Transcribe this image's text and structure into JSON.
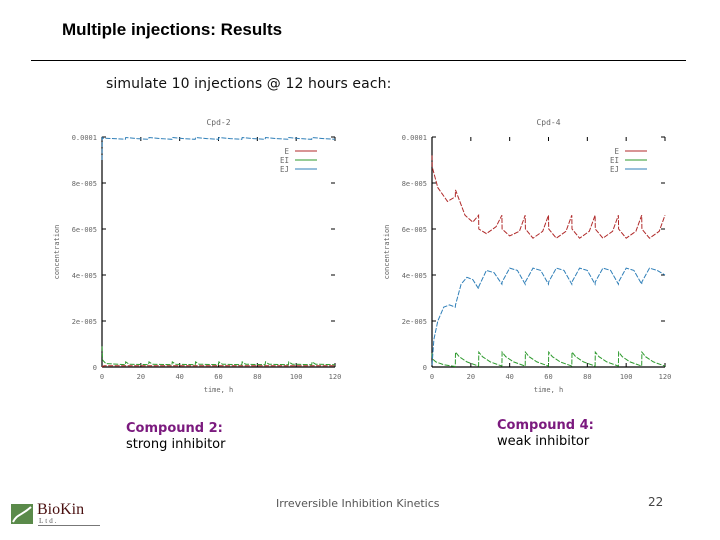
{
  "slide": {
    "title": "Multiple injections: Results",
    "subtitle": "simulate 10 injections @ 12 hours each:",
    "footer_text": "Irreversible Inhibition Kinetics",
    "page_number": "22",
    "logo": {
      "name": "BioKin",
      "suffix": "Ltd."
    }
  },
  "captions": [
    {
      "head": "Compound 2:",
      "desc": "strong inhibitor"
    },
    {
      "head": "Compound 4:",
      "desc": "weak inhibitor"
    }
  ],
  "colors": {
    "E": "#b02a2a",
    "EI": "#2e9a2e",
    "EJ": "#2f7fb8",
    "caption_head": "#7b1a7e"
  },
  "chart_data": [
    {
      "type": "line",
      "title": "Cpd-2",
      "xlabel": "time, h",
      "ylabel": "concentration",
      "xlim": [
        0,
        120
      ],
      "ylim": [
        0,
        0.0001
      ],
      "xticks": [
        "0",
        "20",
        "40",
        "60",
        "80",
        "100",
        "120"
      ],
      "yticks": [
        "0",
        "2e-005",
        "4e-005",
        "6e-005",
        "8e-005",
        "0.0001"
      ],
      "legend": [
        "E",
        "EI",
        "EJ"
      ],
      "legend_position": "top-right",
      "grid": false,
      "injection_interval_h": 12,
      "injections": 10,
      "series": [
        {
          "name": "E",
          "x": [
            0,
            1,
            120
          ],
          "values": [
            0.0,
            5e-07,
            5e-07
          ]
        },
        {
          "name": "EI",
          "x": [
            0,
            0.3,
            2,
            12,
            12.2,
            14,
            24,
            24.2,
            26,
            36,
            36.2,
            38,
            48,
            48.2,
            50,
            60,
            60.2,
            62,
            72,
            72.2,
            74,
            84,
            84.2,
            86,
            96,
            96.2,
            98,
            108,
            108.2,
            110,
            120
          ],
          "values": [
            9e-06,
            3e-06,
            1.5e-06,
            1e-06,
            2.2e-06,
            1.2e-06,
            1e-06,
            2.2e-06,
            1.2e-06,
            1e-06,
            2.2e-06,
            1.2e-06,
            1e-06,
            2.2e-06,
            1.2e-06,
            1e-06,
            2.2e-06,
            1.2e-06,
            1e-06,
            2.2e-06,
            1.2e-06,
            1e-06,
            2.2e-06,
            1.2e-06,
            1e-06,
            2.2e-06,
            1.2e-06,
            1e-06,
            2.2e-06,
            1.2e-06,
            1e-06
          ]
        },
        {
          "name": "EJ",
          "x": [
            0,
            0.1,
            0.5,
            6,
            12,
            12.2,
            18,
            24,
            24.2,
            30,
            36,
            36.2,
            42,
            48,
            48.2,
            54,
            60,
            60.2,
            66,
            72,
            72.2,
            78,
            84,
            84.2,
            90,
            96,
            96.2,
            102,
            108,
            108.2,
            114,
            120
          ],
          "values": [
            9e-05,
            9.98e-05,
            9.95e-05,
            9.93e-05,
            9.9e-05,
            9.98e-05,
            9.93e-05,
            9.9e-05,
            9.98e-05,
            9.93e-05,
            9.9e-05,
            9.98e-05,
            9.93e-05,
            9.9e-05,
            9.98e-05,
            9.93e-05,
            9.9e-05,
            9.98e-05,
            9.93e-05,
            9.9e-05,
            9.98e-05,
            9.93e-05,
            9.9e-05,
            9.98e-05,
            9.93e-05,
            9.9e-05,
            9.98e-05,
            9.93e-05,
            9.9e-05,
            9.98e-05,
            9.93e-05,
            9.9e-05
          ]
        }
      ]
    },
    {
      "type": "line",
      "title": "Cpd-4",
      "xlabel": "time, h",
      "ylabel": "concentration",
      "xlim": [
        0,
        120
      ],
      "ylim": [
        0,
        0.0001
      ],
      "xticks": [
        "0",
        "20",
        "40",
        "60",
        "80",
        "100",
        "120"
      ],
      "yticks": [
        "0",
        "2e-005",
        "4e-005",
        "6e-005",
        "8e-005",
        "0.0001"
      ],
      "legend": [
        "E",
        "EI",
        "EJ"
      ],
      "legend_position": "top-right",
      "grid": false,
      "injection_interval_h": 12,
      "injections": 10,
      "series": [
        {
          "name": "E",
          "x": [
            0,
            0.1,
            3,
            8,
            12,
            12.1,
            17,
            21,
            24,
            24.1,
            28,
            33,
            36,
            36.1,
            40,
            45,
            48,
            48.1,
            52,
            57,
            60,
            60.1,
            64,
            69,
            72,
            72.1,
            76,
            81,
            84,
            84.1,
            88,
            93,
            96,
            96.1,
            100,
            105,
            108,
            108.1,
            112,
            117,
            120
          ],
          "values": [
            9.2e-05,
            8.7e-05,
            7.8e-05,
            7.2e-05,
            7.4e-05,
            7.7e-05,
            6.6e-05,
            6.3e-05,
            6.6e-05,
            6e-05,
            5.8e-05,
            6.1e-05,
            6.6e-05,
            6e-05,
            5.7e-05,
            5.9e-05,
            6.6e-05,
            6e-05,
            5.6e-05,
            5.9e-05,
            6.6e-05,
            6e-05,
            5.6e-05,
            5.9e-05,
            6.6e-05,
            6e-05,
            5.6e-05,
            5.9e-05,
            6.6e-05,
            6e-05,
            5.6e-05,
            5.9e-05,
            6.6e-05,
            6e-05,
            5.6e-05,
            5.9e-05,
            6.6e-05,
            6e-05,
            5.6e-05,
            5.9e-05,
            6.6e-05
          ]
        },
        {
          "name": "EI",
          "x": [
            0,
            0.2,
            2,
            6,
            12,
            12.1,
            14,
            18,
            24,
            24.1,
            26,
            30,
            36,
            36.1,
            38,
            42,
            48,
            48.1,
            50,
            54,
            60,
            60.1,
            62,
            66,
            72,
            72.1,
            74,
            78,
            84,
            84.1,
            86,
            90,
            96,
            96.1,
            98,
            102,
            108,
            108.1,
            110,
            114,
            120
          ],
          "values": [
            6e-06,
            3.5e-06,
            2.2e-06,
            1e-06,
            2e-07,
            6.5e-06,
            4.5e-06,
            2.2e-06,
            4e-07,
            6.5e-06,
            4.5e-06,
            2.2e-06,
            4e-07,
            6.5e-06,
            4.5e-06,
            2.2e-06,
            4e-07,
            6.5e-06,
            4.5e-06,
            2.2e-06,
            4e-07,
            6.5e-06,
            4.5e-06,
            2.2e-06,
            4e-07,
            6.5e-06,
            4.5e-06,
            2.2e-06,
            4e-07,
            6.5e-06,
            4.5e-06,
            2.2e-06,
            4e-07,
            6.5e-06,
            4.5e-06,
            2.2e-06,
            4e-07,
            6.5e-06,
            4.5e-06,
            2.2e-06,
            4e-07
          ]
        },
        {
          "name": "EJ",
          "x": [
            0,
            1,
            3,
            6,
            9,
            12,
            12.1,
            15,
            18,
            21,
            24,
            24.1,
            28,
            32,
            36,
            36.1,
            40,
            44,
            48,
            48.1,
            52,
            56,
            60,
            60.1,
            64,
            68,
            72,
            72.1,
            76,
            80,
            84,
            84.1,
            88,
            92,
            96,
            96.1,
            100,
            104,
            108,
            108.1,
            112,
            116,
            120
          ],
          "values": [
            8e-07,
            1.2e-05,
            2e-05,
            2.6e-05,
            2.7e-05,
            2.6e-05,
            2.7e-05,
            3.6e-05,
            3.9e-05,
            3.8e-05,
            3.4e-05,
            3.5e-05,
            4.2e-05,
            4.1e-05,
            3.6e-05,
            3.7e-05,
            4.3e-05,
            4.2e-05,
            3.6e-05,
            3.7e-05,
            4.3e-05,
            4.2e-05,
            3.6e-05,
            3.7e-05,
            4.3e-05,
            4.2e-05,
            3.6e-05,
            3.7e-05,
            4.3e-05,
            4.2e-05,
            3.6e-05,
            3.7e-05,
            4.3e-05,
            4.2e-05,
            3.6e-05,
            3.7e-05,
            4.3e-05,
            4.2e-05,
            3.6e-05,
            3.7e-05,
            4.3e-05,
            4.2e-05,
            4e-05
          ]
        }
      ]
    }
  ]
}
